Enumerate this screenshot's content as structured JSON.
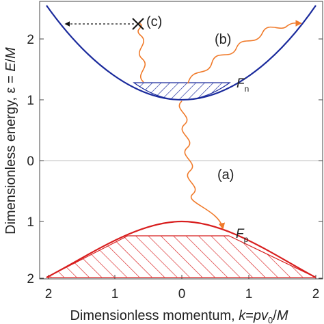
{
  "axes": {
    "xlabel_main": "Dimensionless momentum, ",
    "xlabel_k": "k",
    "xlabel_eq": "=",
    "xlabel_p": "pv",
    "xlabel_sub": "0",
    "xlabel_slash": "/",
    "xlabel_M": "M",
    "ylabel_main": "Dimensionless energy, ε = ",
    "ylabel_E": "E",
    "ylabel_slash": "/",
    "ylabel_M": "M",
    "x_ticks": [
      "2",
      "1",
      "0",
      "1",
      "2"
    ],
    "y_ticks": [
      "2",
      "1",
      "0",
      "1",
      "2"
    ]
  },
  "labels": {
    "a": "(a)",
    "b": "(b)",
    "c": "(c)",
    "fn_main": "F",
    "fn_sub": "n",
    "fp_main": "F",
    "fp_sub": "p"
  },
  "colors": {
    "conduction_band": "#1a2a9c",
    "valence_band": "#d81e1e",
    "photon": "#f07a2a",
    "axis_line": "#bfbfbf"
  },
  "icons": {
    "scatter_marker": "x-cross-icon"
  }
}
